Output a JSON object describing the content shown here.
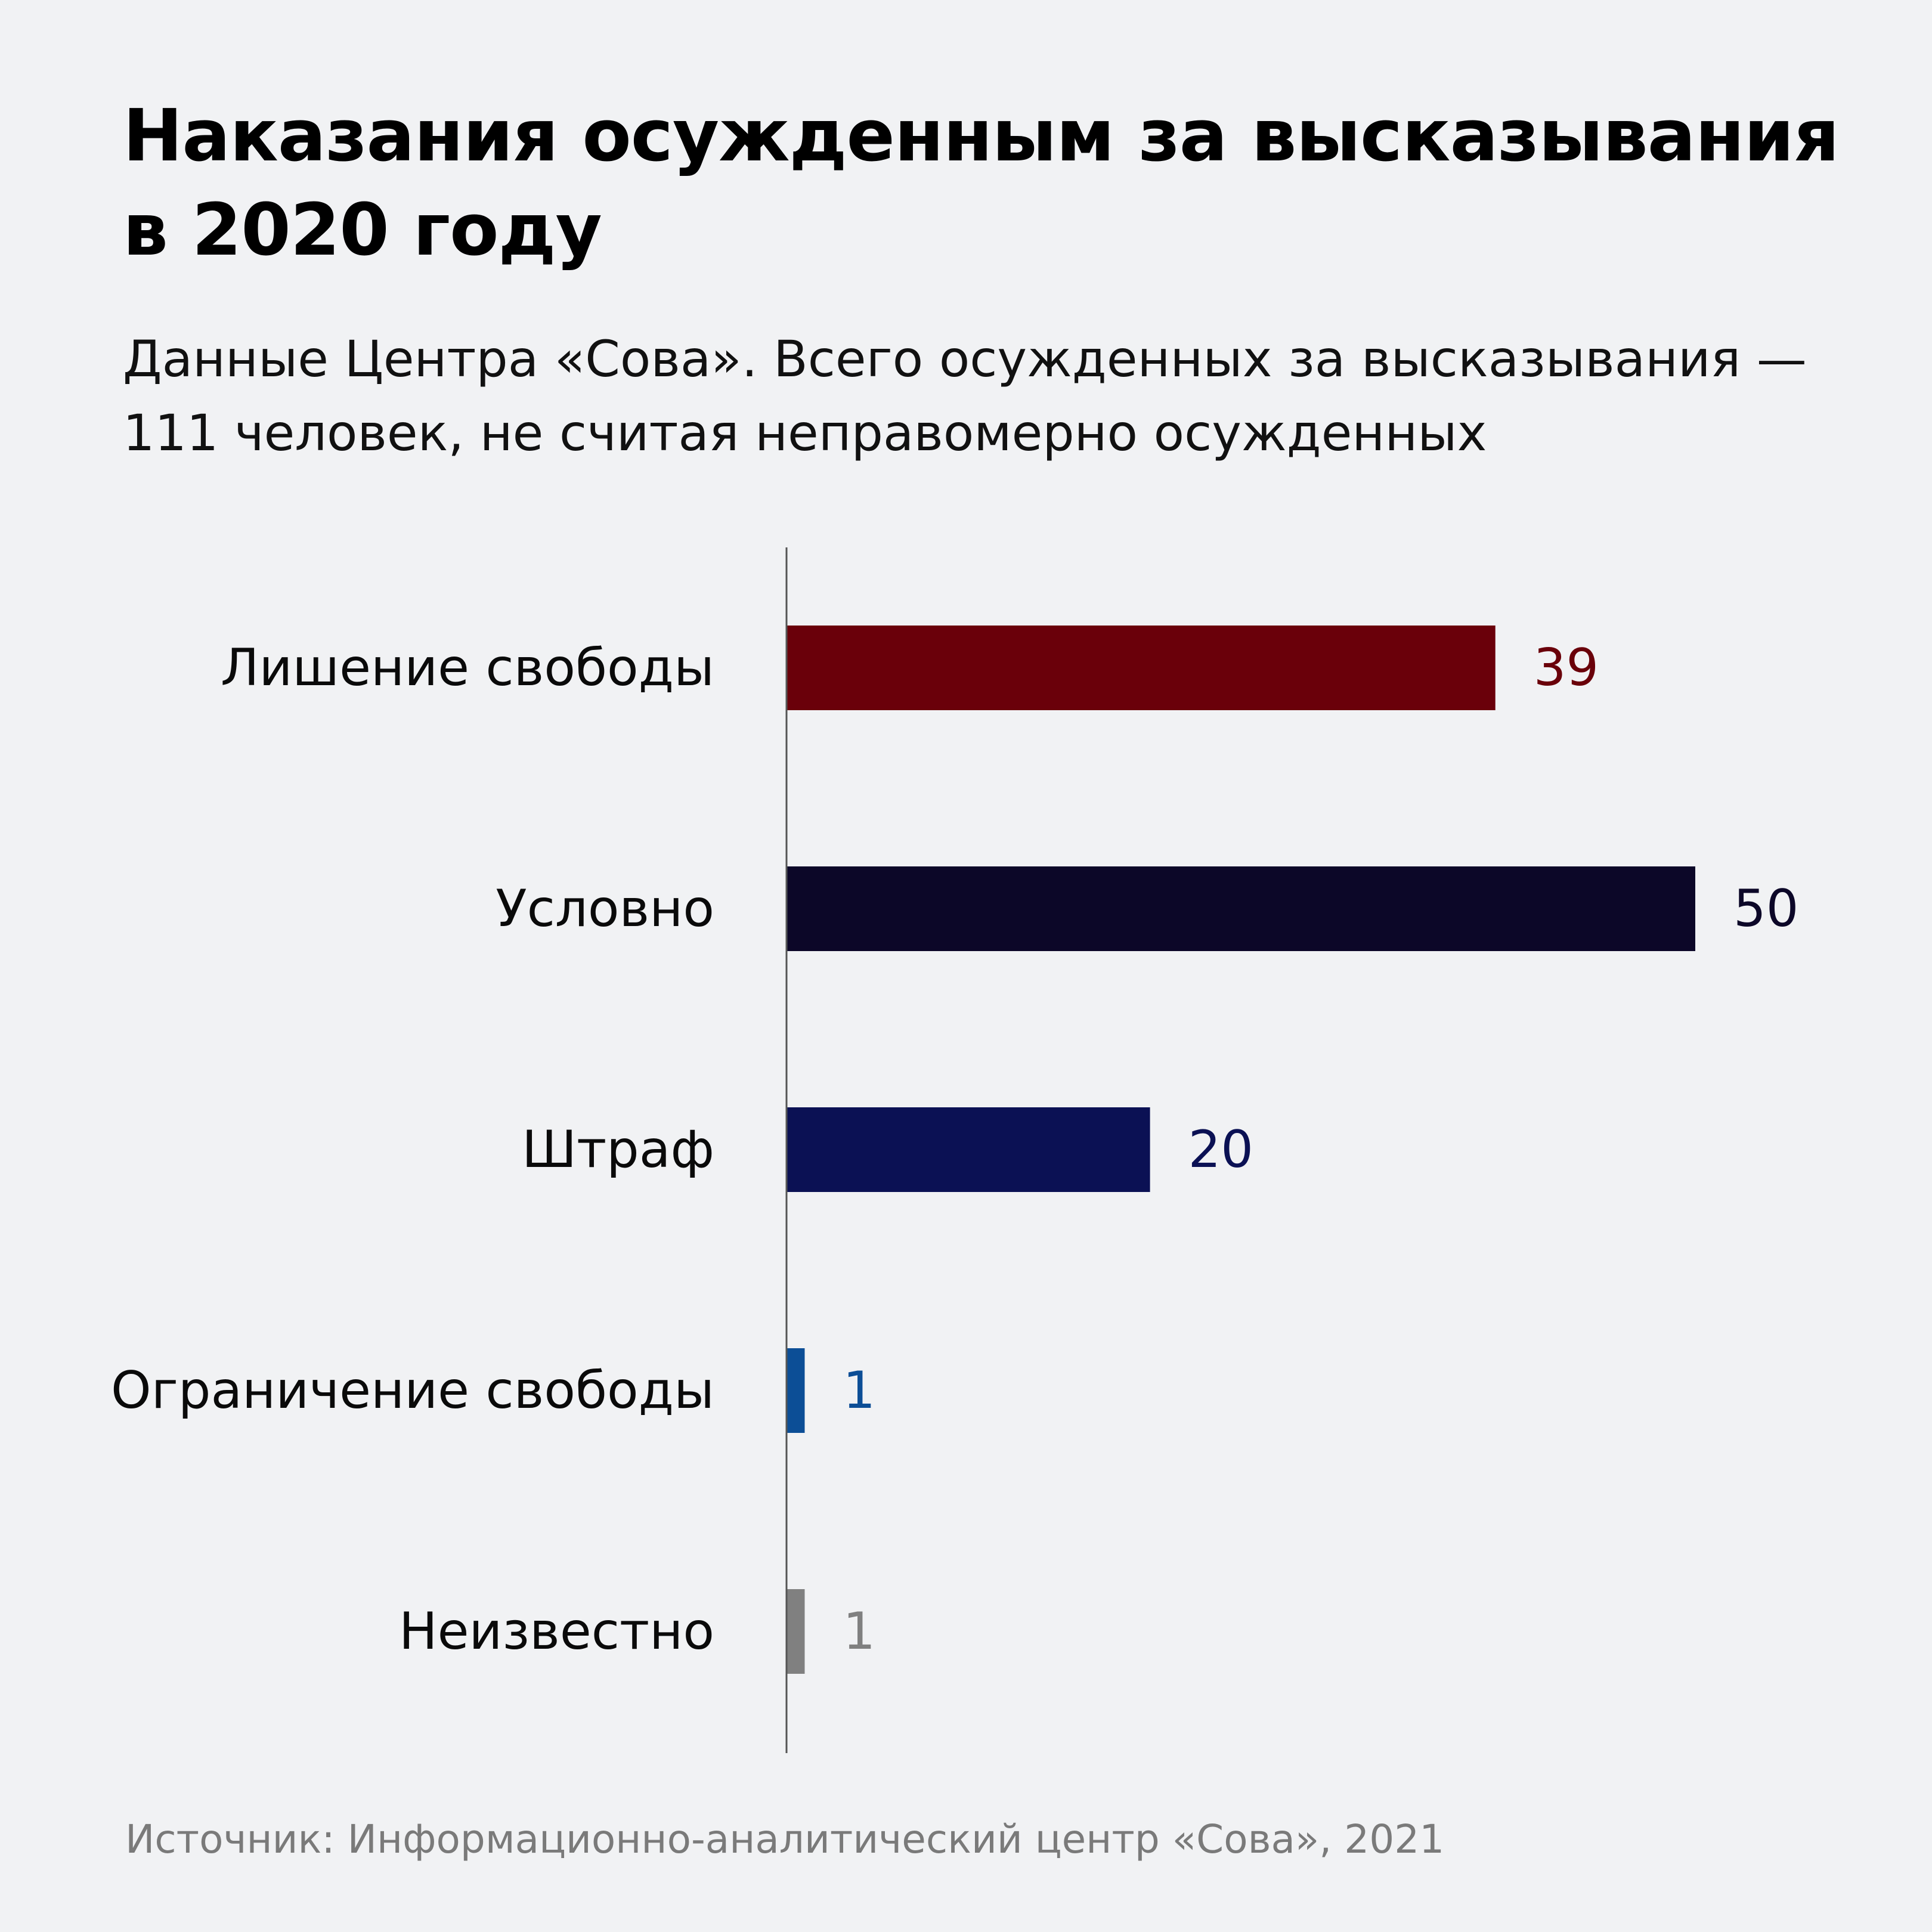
{
  "title": "Наказания осужденным за высказывания в 2020 году",
  "subtitle": "Данные Центра «Сова». Всего осужденных за высказывания — 111 человек, не считая неправомерно осужденных",
  "source": "Источник: Информационно-аналитический центр «Сова», 2021",
  "chart_data": {
    "type": "bar",
    "orientation": "horizontal",
    "categories": [
      "Лишение свободы",
      "Условно",
      "Штраф",
      "Ограничение свободы",
      "Неизвестно"
    ],
    "values": [
      39,
      50,
      20,
      1,
      1
    ],
    "value_labels": [
      "39",
      "50",
      "20",
      "1",
      "1"
    ],
    "colors": [
      "#6a000a",
      "#0c0728",
      "#0b1154",
      "#0c4e96",
      "#808080"
    ],
    "xlim": [
      0,
      50
    ],
    "grid": false,
    "legend": "none",
    "xlabel": "",
    "ylabel": ""
  }
}
